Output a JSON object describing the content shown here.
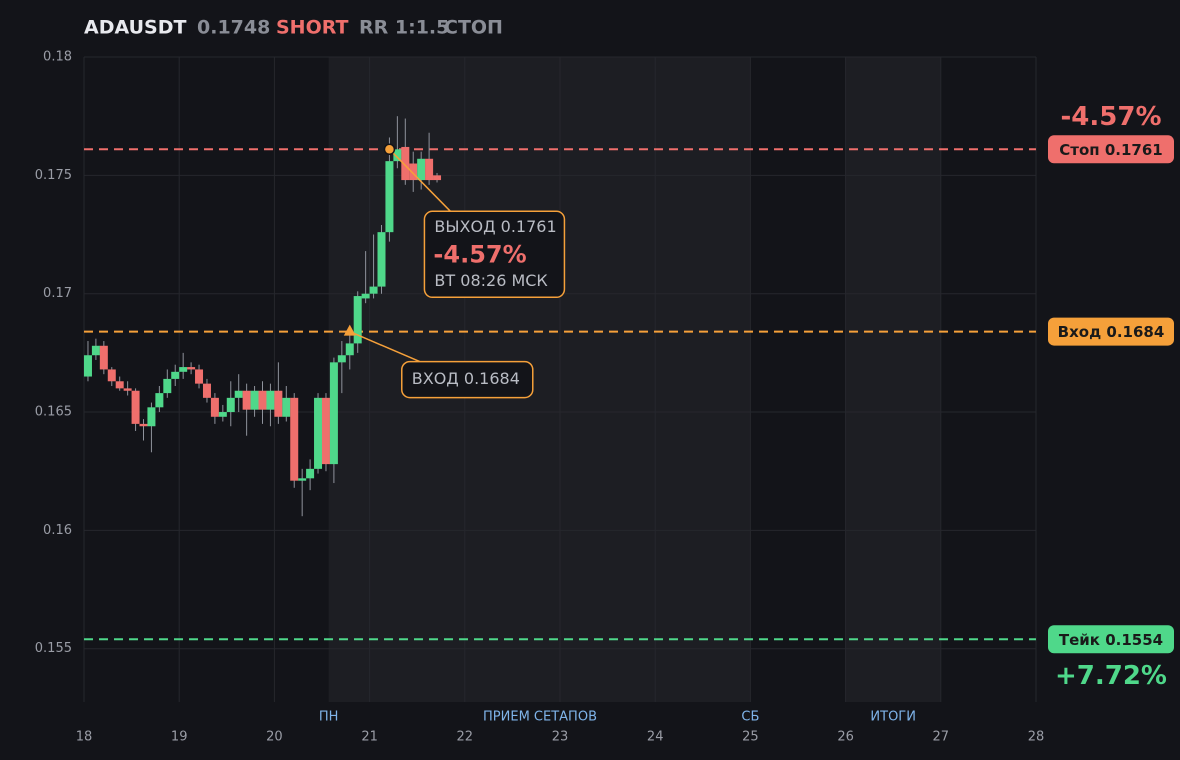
{
  "chart_data": {
    "type": "candlestick",
    "title": "ADAUSDT",
    "price": 0.1748,
    "side": "SHORT",
    "rr": "RR 1:1.5",
    "status": "СТОП",
    "xlim": [
      18,
      28
    ],
    "xticks": [
      18,
      19,
      20,
      21,
      22,
      23,
      24,
      25,
      26,
      27,
      28
    ],
    "ylim": [
      0.15275,
      0.18
    ],
    "yticks": [
      0.155,
      0.16,
      0.165,
      0.17,
      0.175,
      0.18
    ],
    "grid": true,
    "up_color": "#4fd88a",
    "down_color": "#ef6f6c",
    "regions": [
      {
        "start": 20.57,
        "end": 25,
        "labels": [
          {
            "x": 20.57,
            "text": "ПН"
          },
          {
            "x": 22.79,
            "text": "ПРИЕМ СЕТАПОВ"
          },
          {
            "x": 25,
            "text": "СБ"
          }
        ]
      },
      {
        "start": 26,
        "end": 27,
        "labels": [
          {
            "x": 26.5,
            "text": "ИТОГИ"
          }
        ]
      }
    ],
    "x": [
      18.0417,
      18.125,
      18.2083,
      18.2917,
      18.375,
      18.4583,
      18.5417,
      18.625,
      18.7083,
      18.7917,
      18.875,
      18.9583,
      19.0417,
      19.125,
      19.2083,
      19.2917,
      19.375,
      19.4583,
      19.5417,
      19.625,
      19.7083,
      19.7917,
      19.875,
      19.9583,
      20.0417,
      20.125,
      20.2083,
      20.2917,
      20.375,
      20.4583,
      20.5417,
      20.625,
      20.7083,
      20.7917,
      20.875,
      20.9583,
      21.0417,
      21.125,
      21.2083,
      21.2917,
      21.375,
      21.4583,
      21.5417,
      21.625,
      21.7083
    ],
    "open": [
      0.1665,
      0.1674,
      0.1678,
      0.1668,
      0.1663,
      0.166,
      0.1659,
      0.1645,
      0.1644,
      0.1652,
      0.1658,
      0.1664,
      0.1667,
      0.1669,
      0.1668,
      0.1662,
      0.1656,
      0.1648,
      0.165,
      0.1656,
      0.1659,
      0.1651,
      0.1659,
      0.1651,
      0.1659,
      0.1648,
      0.1656,
      0.1621,
      0.1622,
      0.1626,
      0.1656,
      0.1628,
      0.1671,
      0.1674,
      0.1679,
      0.1698,
      0.17,
      0.1703,
      0.1726,
      0.1756,
      0.1762,
      0.1755,
      0.1748,
      0.1757,
      0.175
    ],
    "high": [
      0.168,
      0.1681,
      0.168,
      0.1669,
      0.1665,
      0.1663,
      0.166,
      0.1647,
      0.1654,
      0.1661,
      0.1668,
      0.167,
      0.1675,
      0.1671,
      0.167,
      0.1664,
      0.1658,
      0.1653,
      0.1663,
      0.1666,
      0.1662,
      0.1661,
      0.1663,
      0.1662,
      0.1671,
      0.1661,
      0.1658,
      0.1626,
      0.163,
      0.1658,
      0.1658,
      0.1673,
      0.168,
      0.1684,
      0.1701,
      0.1718,
      0.1725,
      0.1729,
      0.1766,
      0.1775,
      0.1774,
      0.176,
      0.176,
      0.1768,
      0.1751
    ],
    "low": [
      0.1663,
      0.1672,
      0.1666,
      0.1661,
      0.1659,
      0.1657,
      0.1642,
      0.1638,
      0.1633,
      0.165,
      0.1656,
      0.1661,
      0.1664,
      0.1666,
      0.166,
      0.1654,
      0.1645,
      0.1646,
      0.1644,
      0.165,
      0.164,
      0.1648,
      0.1645,
      0.1644,
      0.1645,
      0.1646,
      0.1618,
      0.1606,
      0.1617,
      0.1624,
      0.1625,
      0.162,
      0.1658,
      0.1668,
      0.1675,
      0.1696,
      0.1698,
      0.17,
      0.1722,
      0.1753,
      0.1746,
      0.1743,
      0.1744,
      0.1746,
      0.1747
    ],
    "close": [
      0.1674,
      0.1678,
      0.1668,
      0.1663,
      0.166,
      0.1659,
      0.1645,
      0.1644,
      0.1652,
      0.1658,
      0.1664,
      0.1667,
      0.1669,
      0.1668,
      0.1662,
      0.1656,
      0.1648,
      0.165,
      0.1656,
      0.1659,
      0.1651,
      0.1659,
      0.1651,
      0.1659,
      0.1648,
      0.1656,
      0.1621,
      0.1622,
      0.1626,
      0.1656,
      0.1628,
      0.1671,
      0.1674,
      0.1679,
      0.1699,
      0.17,
      0.1703,
      0.1726,
      0.1756,
      0.1761,
      0.1748,
      0.1748,
      0.1757,
      0.1748,
      0.1748
    ],
    "levels": [
      {
        "value": 0.1761,
        "label": "Стоп 0.1761",
        "pct": "-4.57%",
        "color": "#ef6f6c"
      },
      {
        "value": 0.1684,
        "label": "Вход 0.1684",
        "color": "#f5a03a"
      },
      {
        "value": 0.1554,
        "label": "Тейк 0.1554",
        "pct": "+7.72%",
        "color": "#4fd88a"
      }
    ],
    "markers": [
      {
        "kind": "entry",
        "x": 20.7917,
        "value": 0.1684,
        "label": "ВХОД 0.1684",
        "color": "#f5a03a"
      },
      {
        "kind": "exit",
        "x": 21.2083,
        "value": 0.1761,
        "label": "ВЫХОД 0.1761",
        "pct": "-4.57%",
        "time": "ВТ 08:26 МСК",
        "color": "#f5a03a"
      }
    ]
  }
}
